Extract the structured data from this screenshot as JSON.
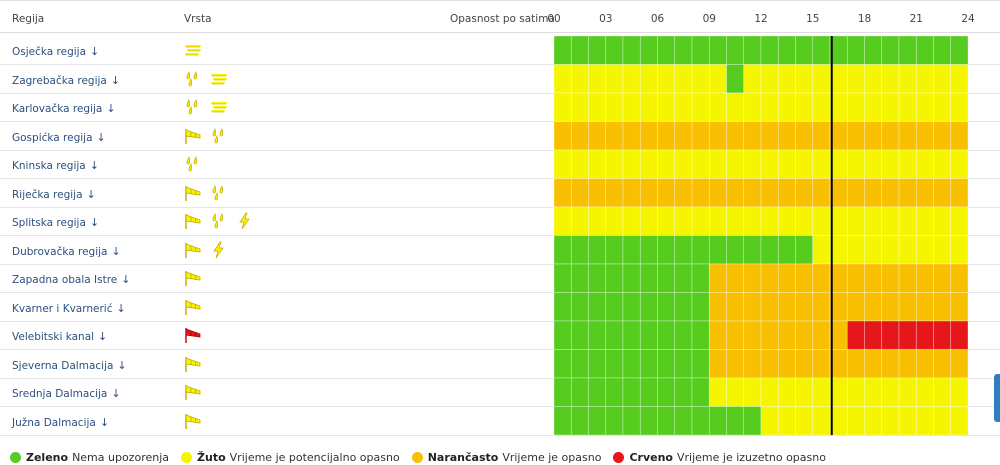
{
  "header": {
    "region_label": "Regija",
    "type_label": "Vrsta",
    "danger_label": "Opasnost po satima",
    "hours": [
      "00",
      "03",
      "06",
      "09",
      "12",
      "15",
      "18",
      "21",
      "24"
    ]
  },
  "current_hour": 16,
  "colors": {
    "green": "#55cc1e",
    "yellow": "#f5f500",
    "orange": "#f8c000",
    "red": "#e6171a"
  },
  "rows": [
    {
      "name": "Osječka regija",
      "arrow": "↓",
      "icons": [
        "fog-icon"
      ],
      "levels": "gggggggggggggggggggggggg"
    },
    {
      "name": "Zagrebačka regija",
      "arrow": "↓",
      "icons": [
        "rain-icon",
        "fog-icon"
      ],
      "levels": "yyyyyyyyyygyyyyyyyyyyyyy"
    },
    {
      "name": "Karlovačka regija",
      "arrow": "↓",
      "icons": [
        "rain-icon",
        "fog-icon"
      ],
      "levels": "yyyyyyyyyyyyyyyyyyyyyyyy"
    },
    {
      "name": "Gospićka regija",
      "arrow": "↓",
      "icons": [
        "wind-icon",
        "rain-icon"
      ],
      "levels": "oooooooooooooooooooooooo"
    },
    {
      "name": "Kninska regija",
      "arrow": "↓",
      "icons": [
        "rain-icon"
      ],
      "levels": "yyyyyyyyyyyyyyyyyyyyyyyy"
    },
    {
      "name": "Riječka regija",
      "arrow": "↓",
      "icons": [
        "wind-icon",
        "rain-icon"
      ],
      "levels": "oooooooooooooooooooooooo"
    },
    {
      "name": "Splitska regija",
      "arrow": "↓",
      "icons": [
        "wind-icon",
        "rain-icon",
        "thunderstorm-icon"
      ],
      "levels": "yyyyyyyyyyyyyyyyyyyyyyyy"
    },
    {
      "name": "Dubrovačka regija",
      "arrow": "↓",
      "icons": [
        "wind-icon",
        "thunderstorm-icon"
      ],
      "levels": "gggggggggggggggyyyyyyyyy"
    },
    {
      "name": "Zapadna obala Istre",
      "arrow": "↓",
      "icons": [
        "wind-icon"
      ],
      "levels": "gggggggggooooooooooooooo"
    },
    {
      "name": "Kvarner i Kvarnerić",
      "arrow": "↓",
      "icons": [
        "wind-icon"
      ],
      "levels": "gggggggggooooooooooooooo"
    },
    {
      "name": "Velebitski kanal",
      "arrow": "↓",
      "icons": [
        "wind-red-icon"
      ],
      "levels": "gggggggggoooooooorrrrrrr"
    },
    {
      "name": "Sjeverna Dalmacija",
      "arrow": "↓",
      "icons": [
        "wind-icon"
      ],
      "levels": "gggggggggooooooooooooooo"
    },
    {
      "name": "Srednja Dalmacija",
      "arrow": "↓",
      "icons": [
        "wind-icon"
      ],
      "levels": "gggggggggyyyyyyyyyyyyyyy"
    },
    {
      "name": "Južna Dalmacija",
      "arrow": "↓",
      "icons": [
        "wind-icon"
      ],
      "levels": "ggggggggggggyyyyyyyyyyyy"
    }
  ],
  "legend": [
    {
      "key": "green",
      "bold": "Zeleno",
      "text": "Nema upozorenja"
    },
    {
      "key": "yellow",
      "bold": "Žuto",
      "text": "Vrijeme je potencijalno opasno"
    },
    {
      "key": "orange",
      "bold": "Narančasto",
      "text": "Vrijeme je opasno"
    },
    {
      "key": "red",
      "bold": "Crveno",
      "text": "Vrijeme je izuzetno opasno"
    }
  ]
}
